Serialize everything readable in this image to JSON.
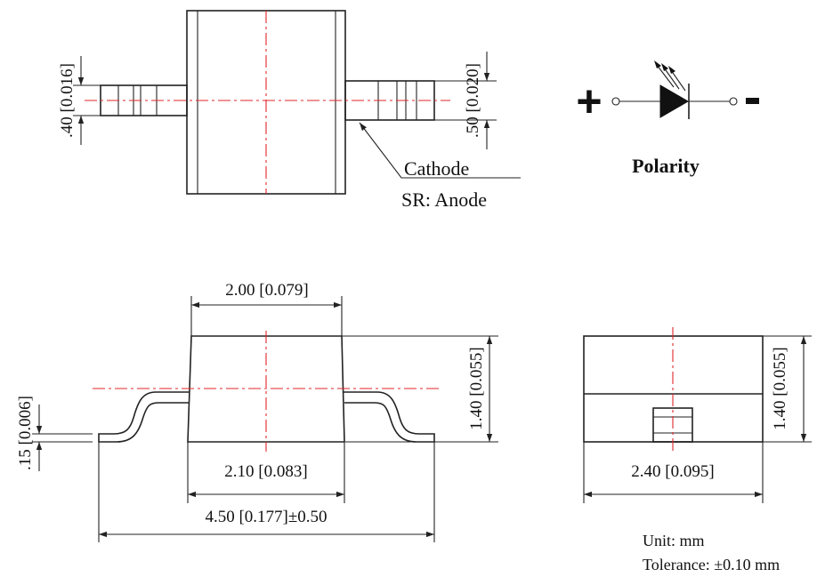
{
  "top_view": {
    "dim_left": ".40 [0.016]",
    "dim_right": ".50 [0.020]",
    "cathode_label": "Cathode",
    "anode_label": "SR: Anode"
  },
  "polarity": {
    "plus": "+",
    "minus": "-",
    "label": "Polarity"
  },
  "side_view": {
    "dim_top_width": "2.00 [0.079]",
    "dim_bottom_width": "2.10 [0.083]",
    "dim_overall": "4.50 [0.177]±0.50",
    "dim_height": "1.40 [0.055]",
    "dim_lead": ".15 [0.006]"
  },
  "end_view": {
    "dim_width": "2.40 [0.095]",
    "dim_height": "1.40 [0.055]"
  },
  "notes": {
    "unit": "Unit: mm",
    "tolerance": "Tolerance: ±0.10 mm"
  },
  "colors": {
    "line": "#222222",
    "centerline": "#e0262a"
  }
}
